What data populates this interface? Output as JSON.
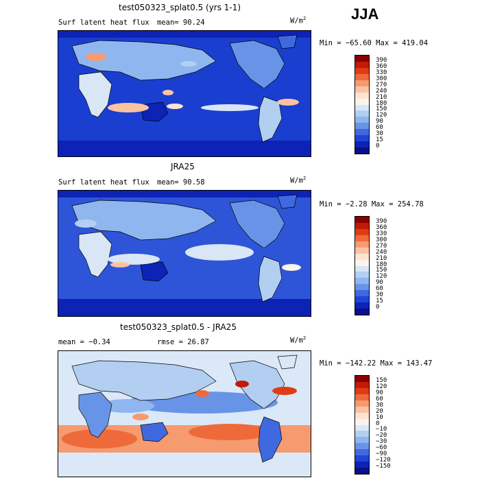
{
  "season": "JJA",
  "panels": [
    {
      "title": "test050323_splat0.5 (yrs 1-1)",
      "field_label": "Surf latent heat flux",
      "stat1": "mean=  90.24",
      "stat2": "",
      "units": "W/m",
      "units_exp": "2",
      "minmax": "Min = −65.60 Max = 419.04",
      "bg": "#1a3fd0",
      "levels": [
        "390",
        "360",
        "330",
        "300",
        "270",
        "240",
        "210",
        "180",
        "150",
        "120",
        "90",
        "60",
        "30",
        "15",
        "0"
      ],
      "colors": [
        "#8b0000",
        "#c01a08",
        "#e03c14",
        "#ef6a3a",
        "#f69a70",
        "#fbc3a2",
        "#fde4d2",
        "#fbf3ec",
        "#d8e6f6",
        "#b2cff2",
        "#8fb6ee",
        "#6894e8",
        "#4169df",
        "#2045d4",
        "#0d23b5",
        "#0a0f8c"
      ]
    },
    {
      "title": "JRA25",
      "field_label": "Surf latent heat flux",
      "stat1": "mean=  90.58",
      "stat2": "",
      "units": "W/m",
      "units_exp": "2",
      "minmax": "Min =  −2.28 Max = 254.78",
      "bg": "#2e55d8",
      "levels": [
        "390",
        "360",
        "330",
        "300",
        "270",
        "240",
        "210",
        "180",
        "150",
        "120",
        "90",
        "60",
        "30",
        "15",
        "0"
      ],
      "colors": [
        "#8b0000",
        "#c01a08",
        "#e03c14",
        "#ef6a3a",
        "#f69a70",
        "#fbc3a2",
        "#fde4d2",
        "#fbf3ec",
        "#d8e6f6",
        "#b2cff2",
        "#8fb6ee",
        "#6894e8",
        "#4169df",
        "#2045d4",
        "#0d23b5",
        "#0a0f8c"
      ]
    },
    {
      "title": "test050323_splat0.5 - JRA25",
      "field_label": "",
      "stat1": "mean =  −0.34",
      "stat2": "rmse =  26.87",
      "units": "W/m",
      "units_exp": "2",
      "minmax": "Min = −142.22 Max = 143.47",
      "bg": "#dbe8f7",
      "levels": [
        "150",
        "120",
        "90",
        "60",
        "30",
        "20",
        "10",
        "0",
        "−10",
        "−20",
        "−30",
        "−60",
        "−90",
        "−120",
        "−150"
      ],
      "colors": [
        "#8b0000",
        "#c01a08",
        "#e03c14",
        "#ef6a3a",
        "#f69a70",
        "#fbc3a2",
        "#fde4d2",
        "#fbf3ec",
        "#dbe8f7",
        "#b2cff2",
        "#8fb6ee",
        "#6894e8",
        "#4169df",
        "#2045d4",
        "#0d23b5",
        "#0a0f8c"
      ]
    }
  ]
}
